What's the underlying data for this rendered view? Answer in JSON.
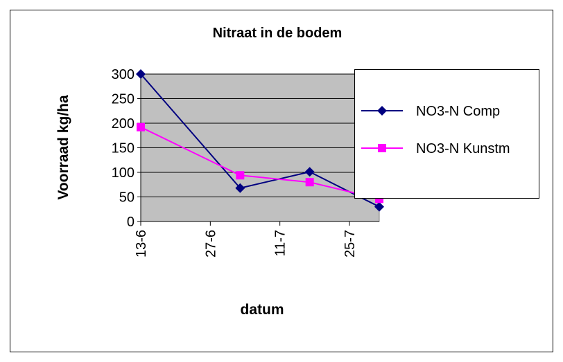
{
  "chart_data": {
    "type": "line",
    "title": "Nitraat in de bodem",
    "x_label": "datum",
    "y_label": "Voorraad kg/ha",
    "x": [
      "13-6",
      "3-7",
      "17-7",
      "31-7"
    ],
    "xlim": [
      "13-6",
      "31-7"
    ],
    "xticks": [
      "13-6",
      "27-6",
      "11-7",
      "25-7"
    ],
    "ylim": [
      0,
      300
    ],
    "yticks": [
      0,
      50,
      100,
      150,
      200,
      250,
      300
    ],
    "grid": true,
    "legend": "right",
    "series": [
      {
        "name": "NO3-N Comp",
        "color": "#000080",
        "marker": "diamond",
        "values": [
          300,
          68,
          101,
          30
        ]
      },
      {
        "name": "NO3-N Kunstm",
        "color": "#ff00ff",
        "marker": "square",
        "values": [
          192,
          94,
          80,
          46
        ]
      }
    ]
  }
}
